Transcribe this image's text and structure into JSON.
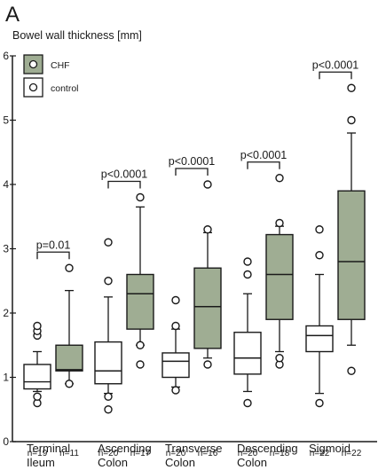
{
  "panel_letter": "A",
  "chart_data": {
    "type": "box",
    "ylabel": "Bowel wall thickness [mm]",
    "ylim": [
      0,
      6
    ],
    "yticks": [
      0,
      1,
      2,
      3,
      4,
      5,
      6
    ],
    "grid": false,
    "legend": {
      "placement": "top-left",
      "items": [
        {
          "label": "CHF",
          "series": "chf"
        },
        {
          "label": "control",
          "series": "control"
        }
      ]
    },
    "colors": {
      "chf": "#9fad93",
      "control": "#ffffff",
      "stroke": "#1a1a1a"
    },
    "groups": [
      {
        "label": [
          "Terminal",
          "Ileum"
        ],
        "significance": "p=0.01",
        "boxes": [
          {
            "series": "control",
            "n": "n=19",
            "whisker_low": 0.78,
            "q1": 0.82,
            "median": 0.93,
            "q3": 1.2,
            "whisker_high": 1.4,
            "outliers": [
              0.6,
              0.7,
              1.65,
              1.72,
              1.8
            ]
          },
          {
            "series": "chf",
            "n": "n=11",
            "whisker_low": 0.9,
            "q1": 1.1,
            "median": 1.12,
            "q3": 1.5,
            "whisker_high": 2.35,
            "outliers": [
              0.9,
              2.7
            ]
          }
        ]
      },
      {
        "label": [
          "Ascending",
          "Colon"
        ],
        "significance": "p<0.0001",
        "boxes": [
          {
            "series": "control",
            "n": "n=20",
            "whisker_low": 0.75,
            "q1": 0.9,
            "median": 1.1,
            "q3": 1.55,
            "whisker_high": 2.25,
            "outliers": [
              0.5,
              0.7,
              2.5,
              3.1
            ]
          },
          {
            "series": "chf",
            "n": "n=17",
            "whisker_low": 1.5,
            "q1": 1.75,
            "median": 2.3,
            "q3": 2.6,
            "whisker_high": 3.65,
            "outliers": [
              1.2,
              1.5,
              3.8
            ]
          }
        ]
      },
      {
        "label": [
          "Transverse",
          "Colon"
        ],
        "significance": "p<0.0001",
        "boxes": [
          {
            "series": "control",
            "n": "n=20",
            "whisker_low": 0.85,
            "q1": 1.0,
            "median": 1.25,
            "q3": 1.38,
            "whisker_high": 1.75,
            "outliers": [
              0.8,
              1.8,
              2.2
            ]
          },
          {
            "series": "chf",
            "n": "n=16",
            "whisker_low": 1.3,
            "q1": 1.45,
            "median": 2.1,
            "q3": 2.7,
            "whisker_high": 3.25,
            "outliers": [
              1.2,
              3.3,
              4.0
            ]
          }
        ]
      },
      {
        "label": [
          "Descending",
          "Colon"
        ],
        "significance": "p<0.0001",
        "boxes": [
          {
            "series": "control",
            "n": "n=20",
            "whisker_low": 0.78,
            "q1": 1.05,
            "median": 1.3,
            "q3": 1.7,
            "whisker_high": 2.3,
            "outliers": [
              0.6,
              2.6,
              2.8
            ]
          },
          {
            "series": "chf",
            "n": "n=18",
            "whisker_low": 1.4,
            "q1": 1.9,
            "median": 2.6,
            "q3": 3.22,
            "whisker_high": 3.35,
            "outliers": [
              1.2,
              1.3,
              3.4,
              4.1
            ]
          }
        ]
      },
      {
        "label": [
          "Sigmoid",
          ""
        ],
        "significance": "p<0.0001",
        "boxes": [
          {
            "series": "control",
            "n": "n=22",
            "whisker_low": 0.75,
            "q1": 1.4,
            "median": 1.65,
            "q3": 1.8,
            "whisker_high": 2.6,
            "outliers": [
              0.6,
              2.9,
              3.3
            ]
          },
          {
            "series": "chf",
            "n": "n=22",
            "whisker_low": 1.5,
            "q1": 1.9,
            "median": 2.8,
            "q3": 3.9,
            "whisker_high": 4.8,
            "outliers": [
              1.1,
              5.0,
              5.5
            ]
          }
        ]
      }
    ]
  }
}
